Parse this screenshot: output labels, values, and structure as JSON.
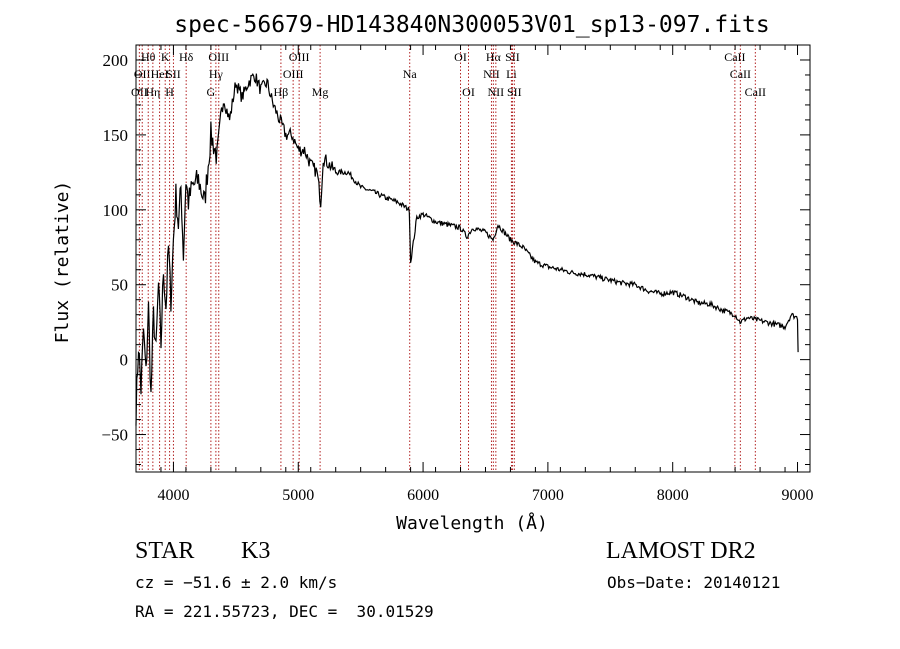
{
  "chart_data": {
    "type": "line",
    "title": "spec-56679-HD143840N300053V01_sp13-097.fits",
    "xlabel": "Wavelength (Å)",
    "ylabel": "Flux (relative)",
    "xlim": [
      3700,
      9100
    ],
    "ylim": [
      -75,
      210
    ],
    "xticks": [
      4000,
      5000,
      6000,
      7000,
      8000,
      9000
    ],
    "xtick_labels": [
      "4000",
      "5000",
      "6000",
      "7000",
      "8000",
      "9000"
    ],
    "yticks": [
      -50,
      0,
      50,
      100,
      150,
      200
    ],
    "ytick_labels": [
      "−50",
      "0",
      "50",
      "100",
      "150",
      "200"
    ],
    "grid": false,
    "line_color": "#000000",
    "marker_color": "#b22222",
    "series": [
      {
        "x": [
          3700,
          3720,
          3740,
          3760,
          3780,
          3800,
          3820,
          3840,
          3860,
          3880,
          3900,
          3920,
          3940,
          3960,
          3980,
          4000,
          4020,
          4040,
          4060,
          4080,
          4100,
          4120,
          4150,
          4200,
          4250,
          4300,
          4350,
          4400,
          4450,
          4500,
          4550,
          4600,
          4650,
          4700,
          4750,
          4800,
          4850,
          4900,
          4950,
          5000,
          5050,
          5100,
          5150,
          5180,
          5200,
          5250,
          5300,
          5400,
          5500,
          5600,
          5700,
          5800,
          5890,
          5900,
          5950,
          6000,
          6100,
          6200,
          6300,
          6350,
          6400,
          6500,
          6560,
          6600,
          6700,
          6800,
          6900,
          7000,
          7100,
          7200,
          7300,
          7400,
          7500,
          7600,
          7700,
          7800,
          7900,
          8000,
          8100,
          8200,
          8300,
          8400,
          8500,
          8540,
          8600,
          8700,
          8800,
          8900,
          8950,
          9000,
          9005
        ],
        "values": [
          -35,
          10,
          -20,
          20,
          -10,
          35,
          -25,
          30,
          5,
          50,
          10,
          60,
          35,
          75,
          40,
          80,
          110,
          90,
          115,
          70,
          120,
          105,
          115,
          120,
          105,
          150,
          135,
          175,
          160,
          185,
          175,
          185,
          190,
          180,
          185,
          170,
          160,
          150,
          150,
          140,
          140,
          130,
          125,
          105,
          135,
          130,
          125,
          125,
          115,
          112,
          108,
          105,
          100,
          65,
          95,
          97,
          92,
          90,
          88,
          82,
          88,
          85,
          80,
          90,
          80,
          75,
          65,
          62,
          60,
          58,
          57,
          55,
          53,
          51,
          50,
          46,
          44,
          45,
          42,
          38,
          37,
          33,
          30,
          25,
          28,
          26,
          24,
          22,
          30,
          28,
          5
        ]
      }
    ],
    "markers": [
      {
        "wavelength": 3727,
        "row": 2,
        "label": "OII"
      },
      {
        "wavelength": 3750,
        "row": 1,
        "label": "OII"
      },
      {
        "wavelength": 3798,
        "row": 0,
        "label": "Hθ"
      },
      {
        "wavelength": 3835,
        "row": 2,
        "label": "Hη"
      },
      {
        "wavelength": 3889,
        "row": 1,
        "label": "HeI"
      },
      {
        "wavelength": 3934,
        "row": 0,
        "label": "K"
      },
      {
        "wavelength": 3969,
        "row": 2,
        "label": "H"
      },
      {
        "wavelength": 4000,
        "row": 1,
        "label": "SII"
      },
      {
        "wavelength": 4102,
        "row": 0,
        "label": "Hδ"
      },
      {
        "wavelength": 4300,
        "row": 2,
        "label": "G"
      },
      {
        "wavelength": 4340,
        "row": 1,
        "label": "Hγ"
      },
      {
        "wavelength": 4363,
        "row": 0,
        "label": "OIII"
      },
      {
        "wavelength": 4861,
        "row": 2,
        "label": "Hβ"
      },
      {
        "wavelength": 4959,
        "row": 1,
        "label": "OIII"
      },
      {
        "wavelength": 5007,
        "row": 0,
        "label": "OIII"
      },
      {
        "wavelength": 5175,
        "row": 2,
        "label": "Mg"
      },
      {
        "wavelength": 5893,
        "row": 1,
        "label": "Na"
      },
      {
        "wavelength": 6300,
        "row": 0,
        "label": "OI"
      },
      {
        "wavelength": 6364,
        "row": 2,
        "label": "OI"
      },
      {
        "wavelength": 6548,
        "row": 1,
        "label": "NII"
      },
      {
        "wavelength": 6563,
        "row": 0,
        "label": "Hα"
      },
      {
        "wavelength": 6583,
        "row": 2,
        "label": "NII"
      },
      {
        "wavelength": 6708,
        "row": 1,
        "label": "Li"
      },
      {
        "wavelength": 6716,
        "row": 0,
        "label": "SII"
      },
      {
        "wavelength": 6731,
        "row": 2,
        "label": "SII"
      },
      {
        "wavelength": 8498,
        "row": 0,
        "label": "CaII"
      },
      {
        "wavelength": 8542,
        "row": 1,
        "label": "CaII"
      },
      {
        "wavelength": 8662,
        "row": 2,
        "label": "CaII"
      }
    ]
  },
  "info": {
    "class_label": "STAR",
    "subclass": "K3",
    "survey": "LAMOST DR2",
    "cz": "cz = −51.6 ± 2.0 km/s",
    "obs_date": "Obs−Date: 20140121",
    "coords": "RA = 221.55723, DEC =  30.01529"
  }
}
